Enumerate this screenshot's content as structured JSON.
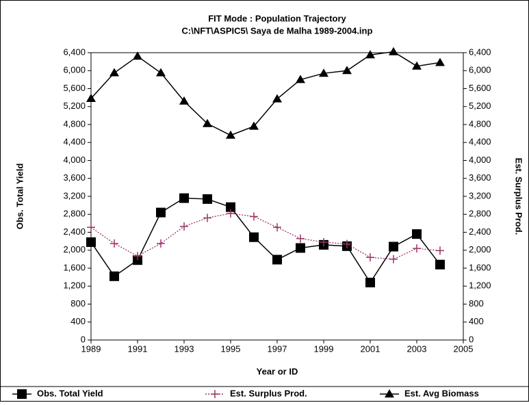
{
  "chart_data": {
    "type": "line",
    "title": "FIT Mode : Population Trajectory",
    "subtitle": "C:\\NFT\\ASPIC5\\ Saya de Malha 1989-2004.inp",
    "xlabel": "Year or ID",
    "ylabel": "Obs. Total Yield",
    "y2label": "Est. Surplus Prod.",
    "x": [
      1989,
      1990,
      1991,
      1992,
      1993,
      1994,
      1995,
      1996,
      1997,
      1998,
      1999,
      2000,
      2001,
      2002,
      2003,
      2004
    ],
    "xlim": [
      1989,
      2005
    ],
    "xticks": [
      1989,
      1991,
      1993,
      1995,
      1997,
      1999,
      2001,
      2003,
      2005
    ],
    "ylim": [
      0,
      6400
    ],
    "y2lim": [
      0,
      6400
    ],
    "yticks": [
      0,
      400,
      800,
      {
        "value": 1200,
        "label": "1,200"
      },
      {
        "value": 1600,
        "label": "1,600"
      },
      {
        "value": 2000,
        "label": "2,000"
      },
      {
        "value": 2400,
        "label": "2,400"
      },
      {
        "value": 2800,
        "label": "2,800"
      },
      {
        "value": 3200,
        "label": "3,200"
      },
      {
        "value": 3600,
        "label": "3,600"
      },
      {
        "value": 4000,
        "label": "4,000"
      },
      {
        "value": 4400,
        "label": "4,400"
      },
      {
        "value": 4800,
        "label": "4,800"
      },
      {
        "value": 5200,
        "label": "5,200"
      },
      {
        "value": 5600,
        "label": "5,600"
      },
      {
        "value": 6000,
        "label": "6,000"
      },
      {
        "value": 6400,
        "label": "6,400"
      }
    ],
    "y2ticks": [
      0,
      400,
      800,
      {
        "value": 1200,
        "label": "1,200"
      },
      {
        "value": 1600,
        "label": "1,600"
      },
      {
        "value": 2000,
        "label": "2,000"
      },
      {
        "value": 2400,
        "label": "2,400"
      },
      {
        "value": 2800,
        "label": "2,800"
      },
      {
        "value": 3200,
        "label": "3,200"
      },
      {
        "value": 3600,
        "label": "3,600"
      },
      {
        "value": 4000,
        "label": "4,000"
      },
      {
        "value": 4400,
        "label": "4,400"
      },
      {
        "value": 4800,
        "label": "4,800"
      },
      {
        "value": 5200,
        "label": "5,200"
      },
      {
        "value": 5600,
        "label": "5,600"
      },
      {
        "value": 6000,
        "label": "6,000"
      },
      {
        "value": 6400,
        "label": "6,400"
      }
    ],
    "legend": "bottom",
    "series": [
      {
        "name": "Obs. Total Yield",
        "color": "#000000",
        "marker": "square",
        "line_style": "solid",
        "values": [
          2180,
          1420,
          1780,
          2840,
          3160,
          3140,
          2960,
          2290,
          1790,
          2050,
          2120,
          2090,
          1280,
          2080,
          2360,
          1680
        ]
      },
      {
        "name": "Est. Surplus Prod.",
        "color": "#993366",
        "marker": "plus",
        "line_style": "dotted",
        "axis": "y2",
        "values": [
          2510,
          2150,
          1870,
          2150,
          2530,
          2720,
          2820,
          2750,
          2510,
          2260,
          2180,
          2140,
          1840,
          1800,
          2040,
          1990
        ]
      },
      {
        "name": "Est. Avg Biomass",
        "color": "#000000",
        "marker": "triangle",
        "line_style": "solid",
        "axis": "y2",
        "values": [
          5380,
          5950,
          6320,
          5950,
          5320,
          4820,
          4560,
          4760,
          5370,
          5800,
          5940,
          6000,
          6350,
          6420,
          6100,
          6180
        ]
      }
    ]
  }
}
